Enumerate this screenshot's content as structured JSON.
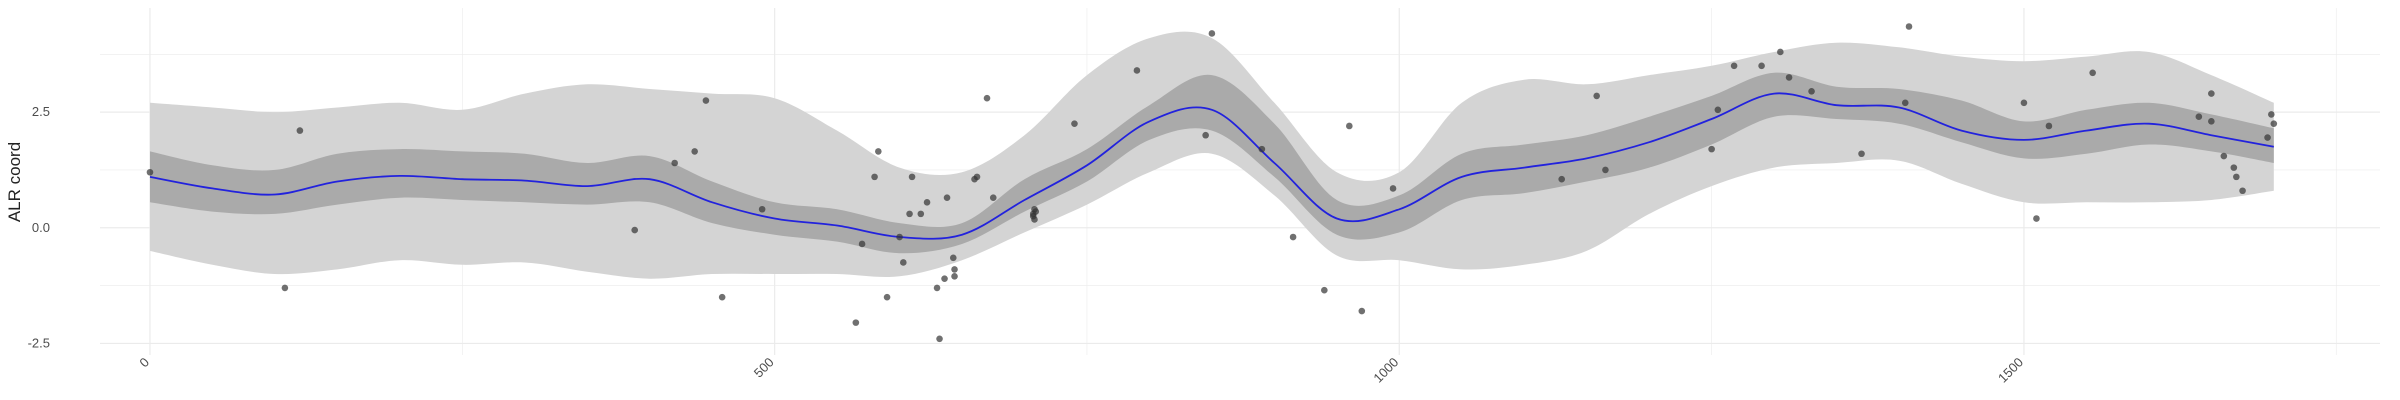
{
  "chart_data": {
    "type": "line",
    "title": "",
    "xlabel": "",
    "ylabel": "ALR coord",
    "xlim": [
      -40,
      1785
    ],
    "ylim": [
      -2.75,
      4.75
    ],
    "x_ticks": [
      0,
      500,
      1000,
      1500
    ],
    "x_tick_labels": [
      "0",
      "500",
      "1000",
      "1500"
    ],
    "y_ticks": [
      -2.5,
      0.0,
      2.5
    ],
    "y_tick_labels": [
      "-2.5",
      "0.0",
      "2.5"
    ],
    "grid": true,
    "legend": "none",
    "colors": {
      "mean_line": "#2222dd",
      "inner_band": "#aaaaaa",
      "outer_band": "#d4d4d4",
      "points": "#333333",
      "grid": "#ebebeb"
    },
    "series": [
      {
        "kind": "band-outer",
        "x": [
          0,
          50,
          100,
          150,
          200,
          250,
          300,
          350,
          400,
          450,
          500,
          550,
          600,
          650,
          700,
          750,
          800,
          850,
          900,
          950,
          1000,
          1050,
          1100,
          1150,
          1200,
          1250,
          1300,
          1350,
          1400,
          1450,
          1500,
          1550,
          1600,
          1650,
          1700
        ],
        "lower": [
          -0.5,
          -0.8,
          -1.0,
          -0.9,
          -0.7,
          -0.8,
          -0.75,
          -0.95,
          -1.1,
          -1.0,
          -1.0,
          -1.0,
          -1.05,
          -0.7,
          -0.1,
          0.5,
          1.2,
          1.6,
          0.7,
          -0.6,
          -0.7,
          -0.9,
          -0.8,
          -0.5,
          0.3,
          0.9,
          1.3,
          1.4,
          1.45,
          0.95,
          0.55,
          0.55,
          0.55,
          0.6,
          0.8
        ],
        "upper": [
          2.7,
          2.6,
          2.5,
          2.6,
          2.7,
          2.55,
          2.9,
          3.1,
          3.0,
          2.9,
          2.8,
          2.1,
          1.3,
          1.2,
          2.0,
          3.3,
          4.1,
          4.1,
          2.7,
          1.2,
          1.2,
          2.7,
          3.2,
          3.1,
          3.3,
          3.5,
          3.8,
          4.0,
          3.9,
          3.7,
          3.6,
          3.7,
          3.8,
          3.3,
          2.7
        ]
      },
      {
        "kind": "band-inner",
        "x": [
          0,
          50,
          100,
          150,
          200,
          250,
          300,
          350,
          400,
          450,
          500,
          550,
          600,
          650,
          700,
          750,
          800,
          850,
          900,
          950,
          1000,
          1050,
          1100,
          1150,
          1200,
          1250,
          1300,
          1350,
          1400,
          1450,
          1500,
          1550,
          1600,
          1650,
          1700
        ],
        "lower": [
          0.55,
          0.35,
          0.3,
          0.5,
          0.65,
          0.6,
          0.55,
          0.5,
          0.55,
          0.1,
          -0.15,
          -0.3,
          -0.55,
          -0.35,
          0.35,
          1.0,
          1.9,
          2.1,
          1.1,
          -0.15,
          -0.1,
          0.6,
          0.75,
          1.0,
          1.3,
          1.8,
          2.4,
          2.35,
          2.25,
          1.85,
          1.5,
          1.6,
          1.8,
          1.65,
          1.4
        ],
        "upper": [
          1.65,
          1.35,
          1.25,
          1.6,
          1.7,
          1.65,
          1.6,
          1.4,
          1.55,
          1.0,
          0.55,
          0.4,
          0.1,
          0.1,
          1.05,
          1.7,
          2.65,
          3.3,
          2.25,
          0.6,
          0.7,
          1.6,
          1.8,
          2.0,
          2.4,
          2.85,
          3.35,
          3.05,
          3.0,
          2.75,
          2.3,
          2.55,
          2.7,
          2.45,
          2.15
        ]
      },
      {
        "kind": "mean",
        "x": [
          0,
          50,
          100,
          150,
          200,
          250,
          300,
          350,
          400,
          450,
          500,
          550,
          600,
          650,
          700,
          750,
          800,
          850,
          900,
          950,
          1000,
          1050,
          1100,
          1150,
          1200,
          1250,
          1300,
          1350,
          1400,
          1450,
          1500,
          1550,
          1600,
          1650,
          1700
        ],
        "values": [
          1.1,
          0.85,
          0.72,
          1.0,
          1.12,
          1.05,
          1.02,
          0.9,
          1.05,
          0.55,
          0.2,
          0.05,
          -0.2,
          -0.15,
          0.6,
          1.35,
          2.3,
          2.55,
          1.4,
          0.2,
          0.4,
          1.1,
          1.3,
          1.5,
          1.85,
          2.35,
          2.9,
          2.65,
          2.6,
          2.1,
          1.9,
          2.1,
          2.25,
          2.0,
          1.75
        ]
      },
      {
        "kind": "points",
        "points": [
          [
            0,
            1.2
          ],
          [
            108,
            -1.3
          ],
          [
            120,
            2.1
          ],
          [
            388,
            -0.05
          ],
          [
            420,
            1.4
          ],
          [
            436,
            1.65
          ],
          [
            445,
            2.75
          ],
          [
            458,
            -1.5
          ],
          [
            490,
            0.4
          ],
          [
            565,
            -2.05
          ],
          [
            570,
            -0.35
          ],
          [
            580,
            1.1
          ],
          [
            583,
            1.65
          ],
          [
            590,
            -1.5
          ],
          [
            600,
            -0.2
          ],
          [
            603,
            -0.75
          ],
          [
            608,
            0.3
          ],
          [
            610,
            1.1
          ],
          [
            617,
            0.3
          ],
          [
            622,
            0.55
          ],
          [
            630,
            -1.3
          ],
          [
            632,
            -2.4
          ],
          [
            636,
            -1.1
          ],
          [
            638,
            0.65
          ],
          [
            643,
            -0.65
          ],
          [
            644,
            -0.9
          ],
          [
            644,
            -1.05
          ],
          [
            660,
            1.05
          ],
          [
            662,
            1.1
          ],
          [
            670,
            2.8
          ],
          [
            675,
            0.65
          ],
          [
            707,
            0.25
          ],
          [
            707,
            0.3
          ],
          [
            708,
            0.4
          ],
          [
            709,
            0.35
          ],
          [
            708,
            0.18
          ],
          [
            740,
            2.25
          ],
          [
            790,
            3.4
          ],
          [
            845,
            2.0
          ],
          [
            850,
            4.2
          ],
          [
            890,
            1.7
          ],
          [
            915,
            -0.2
          ],
          [
            940,
            -1.35
          ],
          [
            960,
            2.2
          ],
          [
            970,
            -1.8
          ],
          [
            995,
            0.85
          ],
          [
            1130,
            1.05
          ],
          [
            1158,
            2.85
          ],
          [
            1165,
            1.25
          ],
          [
            1250,
            1.7
          ],
          [
            1255,
            2.55
          ],
          [
            1268,
            3.5
          ],
          [
            1290,
            3.5
          ],
          [
            1305,
            3.8
          ],
          [
            1312,
            3.25
          ],
          [
            1330,
            2.95
          ],
          [
            1370,
            1.6
          ],
          [
            1405,
            2.7
          ],
          [
            1408,
            4.35
          ],
          [
            1500,
            2.7
          ],
          [
            1510,
            0.2
          ],
          [
            1520,
            2.2
          ],
          [
            1555,
            3.35
          ],
          [
            1640,
            2.4
          ],
          [
            1650,
            2.9
          ],
          [
            1650,
            2.3
          ],
          [
            1660,
            1.55
          ],
          [
            1668,
            1.3
          ],
          [
            1670,
            1.1
          ],
          [
            1675,
            0.8
          ],
          [
            1695,
            1.95
          ],
          [
            1698,
            2.45
          ],
          [
            1700,
            2.25
          ]
        ]
      }
    ]
  }
}
